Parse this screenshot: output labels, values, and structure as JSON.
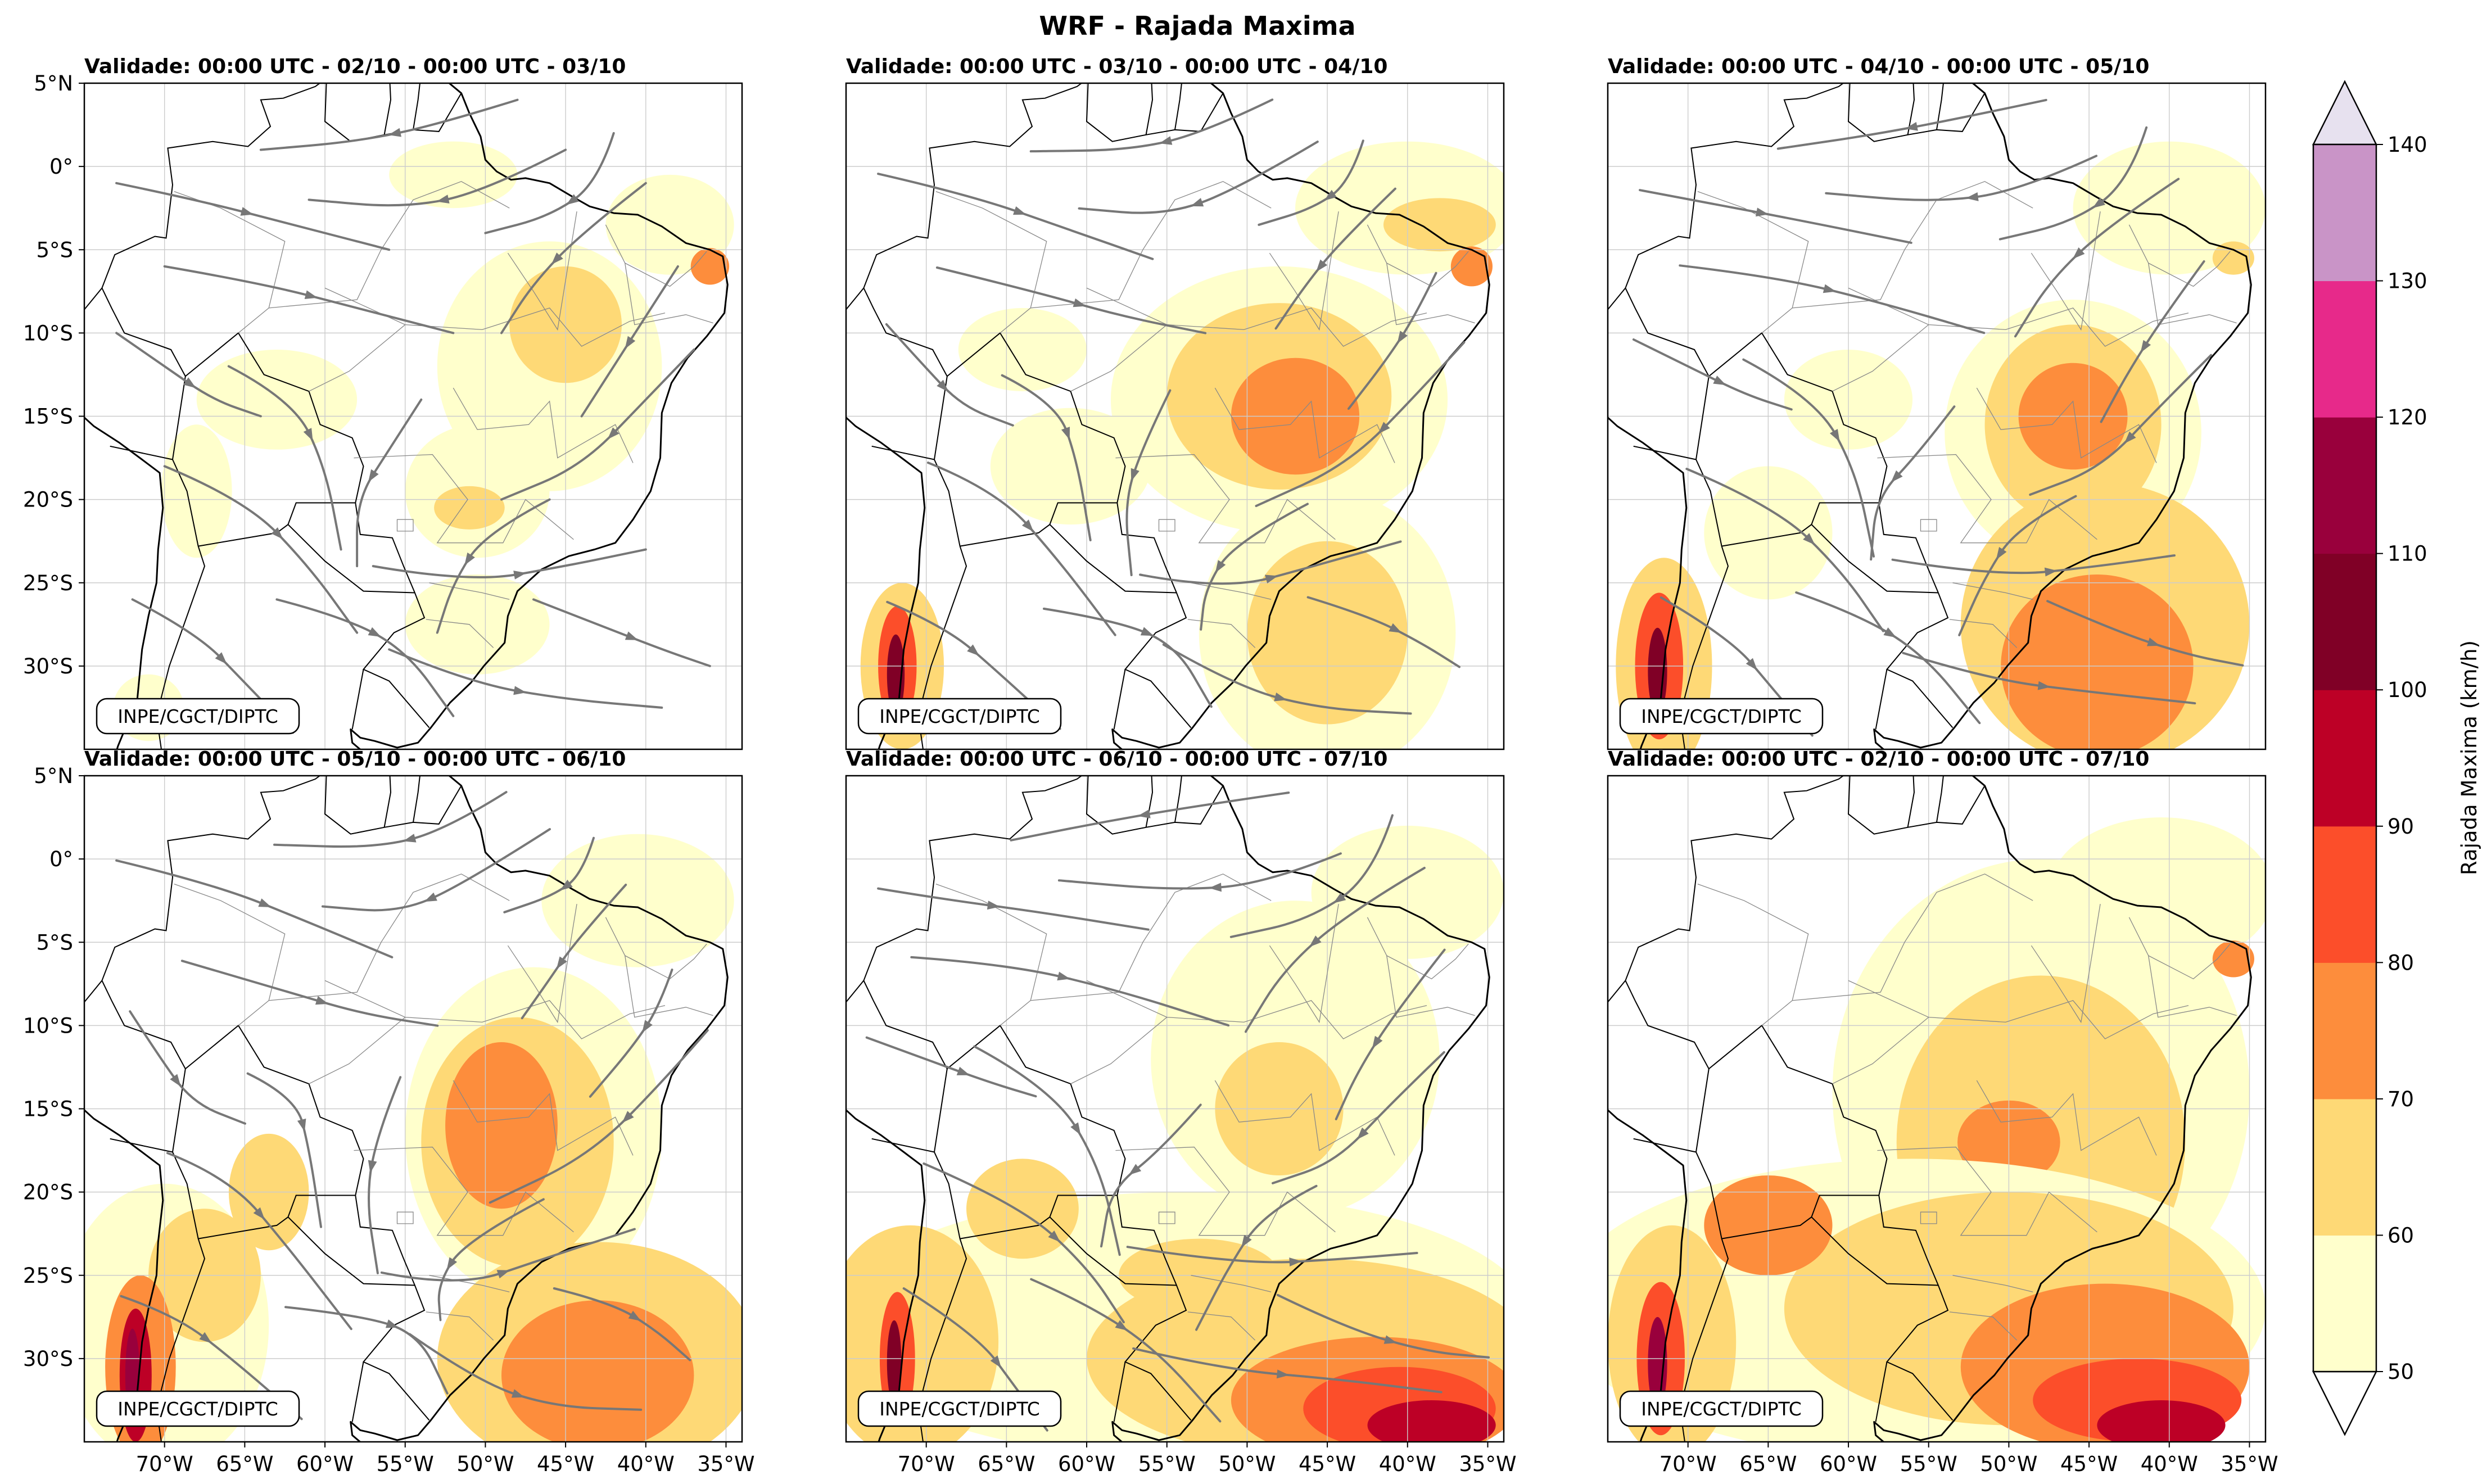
{
  "figure_title": "WRF - Rajada Maxima",
  "panels": [
    {
      "title": "Validade: 00:00 UTC - 02/10 - 00:00 UTC - 03/10",
      "credit": "INPE/CGCT/DIPTC",
      "streamlines": true,
      "stage": 0
    },
    {
      "title": "Validade: 00:00 UTC - 03/10 - 00:00 UTC - 04/10",
      "credit": "INPE/CGCT/DIPTC",
      "streamlines": true,
      "stage": 1
    },
    {
      "title": "Validade: 00:00 UTC - 04/10 - 00:00 UTC - 05/10",
      "credit": "INPE/CGCT/DIPTC",
      "streamlines": true,
      "stage": 2
    },
    {
      "title": "Validade: 00:00 UTC - 05/10 - 00:00 UTC - 06/10",
      "credit": "INPE/CGCT/DIPTC",
      "streamlines": true,
      "stage": 3
    },
    {
      "title": "Validade: 00:00 UTC - 06/10 - 00:00 UTC - 07/10",
      "credit": "INPE/CGCT/DIPTC",
      "streamlines": true,
      "stage": 4
    },
    {
      "title": "Validade: 00:00 UTC - 02/10 - 00:00 UTC - 07/10",
      "credit": "INPE/CGCT/DIPTC",
      "streamlines": false,
      "stage": 5
    }
  ],
  "map_extent": {
    "lon": [
      -75,
      -34
    ],
    "lat": [
      -35,
      5
    ]
  },
  "lat_ticks": [
    {
      "value": 5,
      "label": "5°N"
    },
    {
      "value": 0,
      "label": "0°"
    },
    {
      "value": -5,
      "label": "5°S"
    },
    {
      "value": -10,
      "label": "10°S"
    },
    {
      "value": -15,
      "label": "15°S"
    },
    {
      "value": -20,
      "label": "20°S"
    },
    {
      "value": -25,
      "label": "25°S"
    },
    {
      "value": -30,
      "label": "30°S"
    }
  ],
  "lon_ticks": [
    {
      "value": -70,
      "label": "70°W"
    },
    {
      "value": -65,
      "label": "65°W"
    },
    {
      "value": -60,
      "label": "60°W"
    },
    {
      "value": -55,
      "label": "55°W"
    },
    {
      "value": -50,
      "label": "50°W"
    },
    {
      "value": -45,
      "label": "45°W"
    },
    {
      "value": -40,
      "label": "40°W"
    },
    {
      "value": -35,
      "label": "35°W"
    }
  ],
  "colorbar": {
    "label": "Rajada Maxima (km/h)",
    "levels": [
      50,
      60,
      70,
      80,
      90,
      100,
      110,
      120,
      130,
      140
    ],
    "colors": [
      "#ffffcc",
      "#fed976",
      "#fd8d3c",
      "#fc4e2a",
      "#bd0026",
      "#800026",
      "#99003c",
      "#e7298a",
      "#c994c7"
    ],
    "over_color": "#e7e1ef",
    "under_color": "#ffffff"
  },
  "colors": {
    "streamline": "#777777",
    "coast": "#000000",
    "border": "#888888",
    "grid": "#cccccc"
  }
}
